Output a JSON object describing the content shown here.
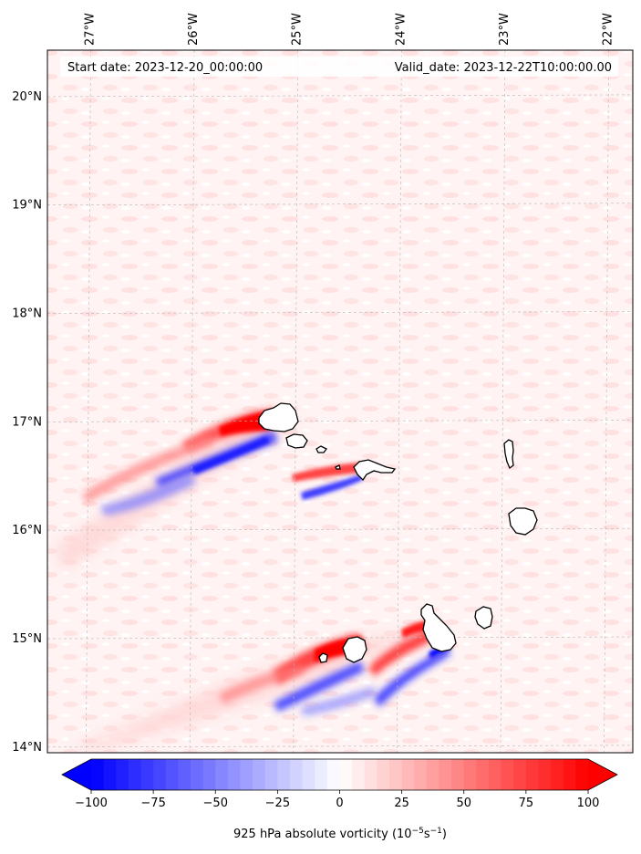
{
  "header": {
    "start_date": "Start date: 2023-12-20_00:00:00",
    "valid_date": "Valid_date: 2023-12-22T10:00:00.00"
  },
  "map": {
    "lon_ticks": [
      {
        "value": -27,
        "label": "27°W"
      },
      {
        "value": -26,
        "label": "26°W"
      },
      {
        "value": -25,
        "label": "25°W"
      },
      {
        "value": -24,
        "label": "24°W"
      },
      {
        "value": -23,
        "label": "23°W"
      },
      {
        "value": -22,
        "label": "22°W"
      }
    ],
    "lat_ticks": [
      {
        "value": 20,
        "label": "20°N"
      },
      {
        "value": 19,
        "label": "19°N"
      },
      {
        "value": 18,
        "label": "18°N"
      },
      {
        "value": 17,
        "label": "17°N"
      },
      {
        "value": 16,
        "label": "16°N"
      },
      {
        "value": 15,
        "label": "15°N"
      },
      {
        "value": 14,
        "label": "14°N"
      }
    ],
    "lon_range": [
      -27.4,
      -21.75
    ],
    "lat_range": [
      13.94,
      20.42
    ],
    "gridlines": true,
    "colormap": "bwr",
    "colors": {
      "negative": "#0000ff",
      "zero": "#ffffff",
      "positive": "#ff0000",
      "coastline": "#000000"
    }
  },
  "colorbar": {
    "ticks": [
      {
        "value": -100,
        "label": "−100"
      },
      {
        "value": -75,
        "label": "−75"
      },
      {
        "value": -50,
        "label": "−50"
      },
      {
        "value": -25,
        "label": "−25"
      },
      {
        "value": 0,
        "label": "0"
      },
      {
        "value": 25,
        "label": "25"
      },
      {
        "value": 50,
        "label": "50"
      },
      {
        "value": 75,
        "label": "75"
      },
      {
        "value": 100,
        "label": "100"
      }
    ],
    "label_main": "925 hPa absolute vorticity (10",
    "label_exp1": "−5",
    "label_mid": "s",
    "label_exp2": "−1",
    "label_end": ")",
    "range": [
      -100,
      100
    ],
    "extend": "both"
  }
}
